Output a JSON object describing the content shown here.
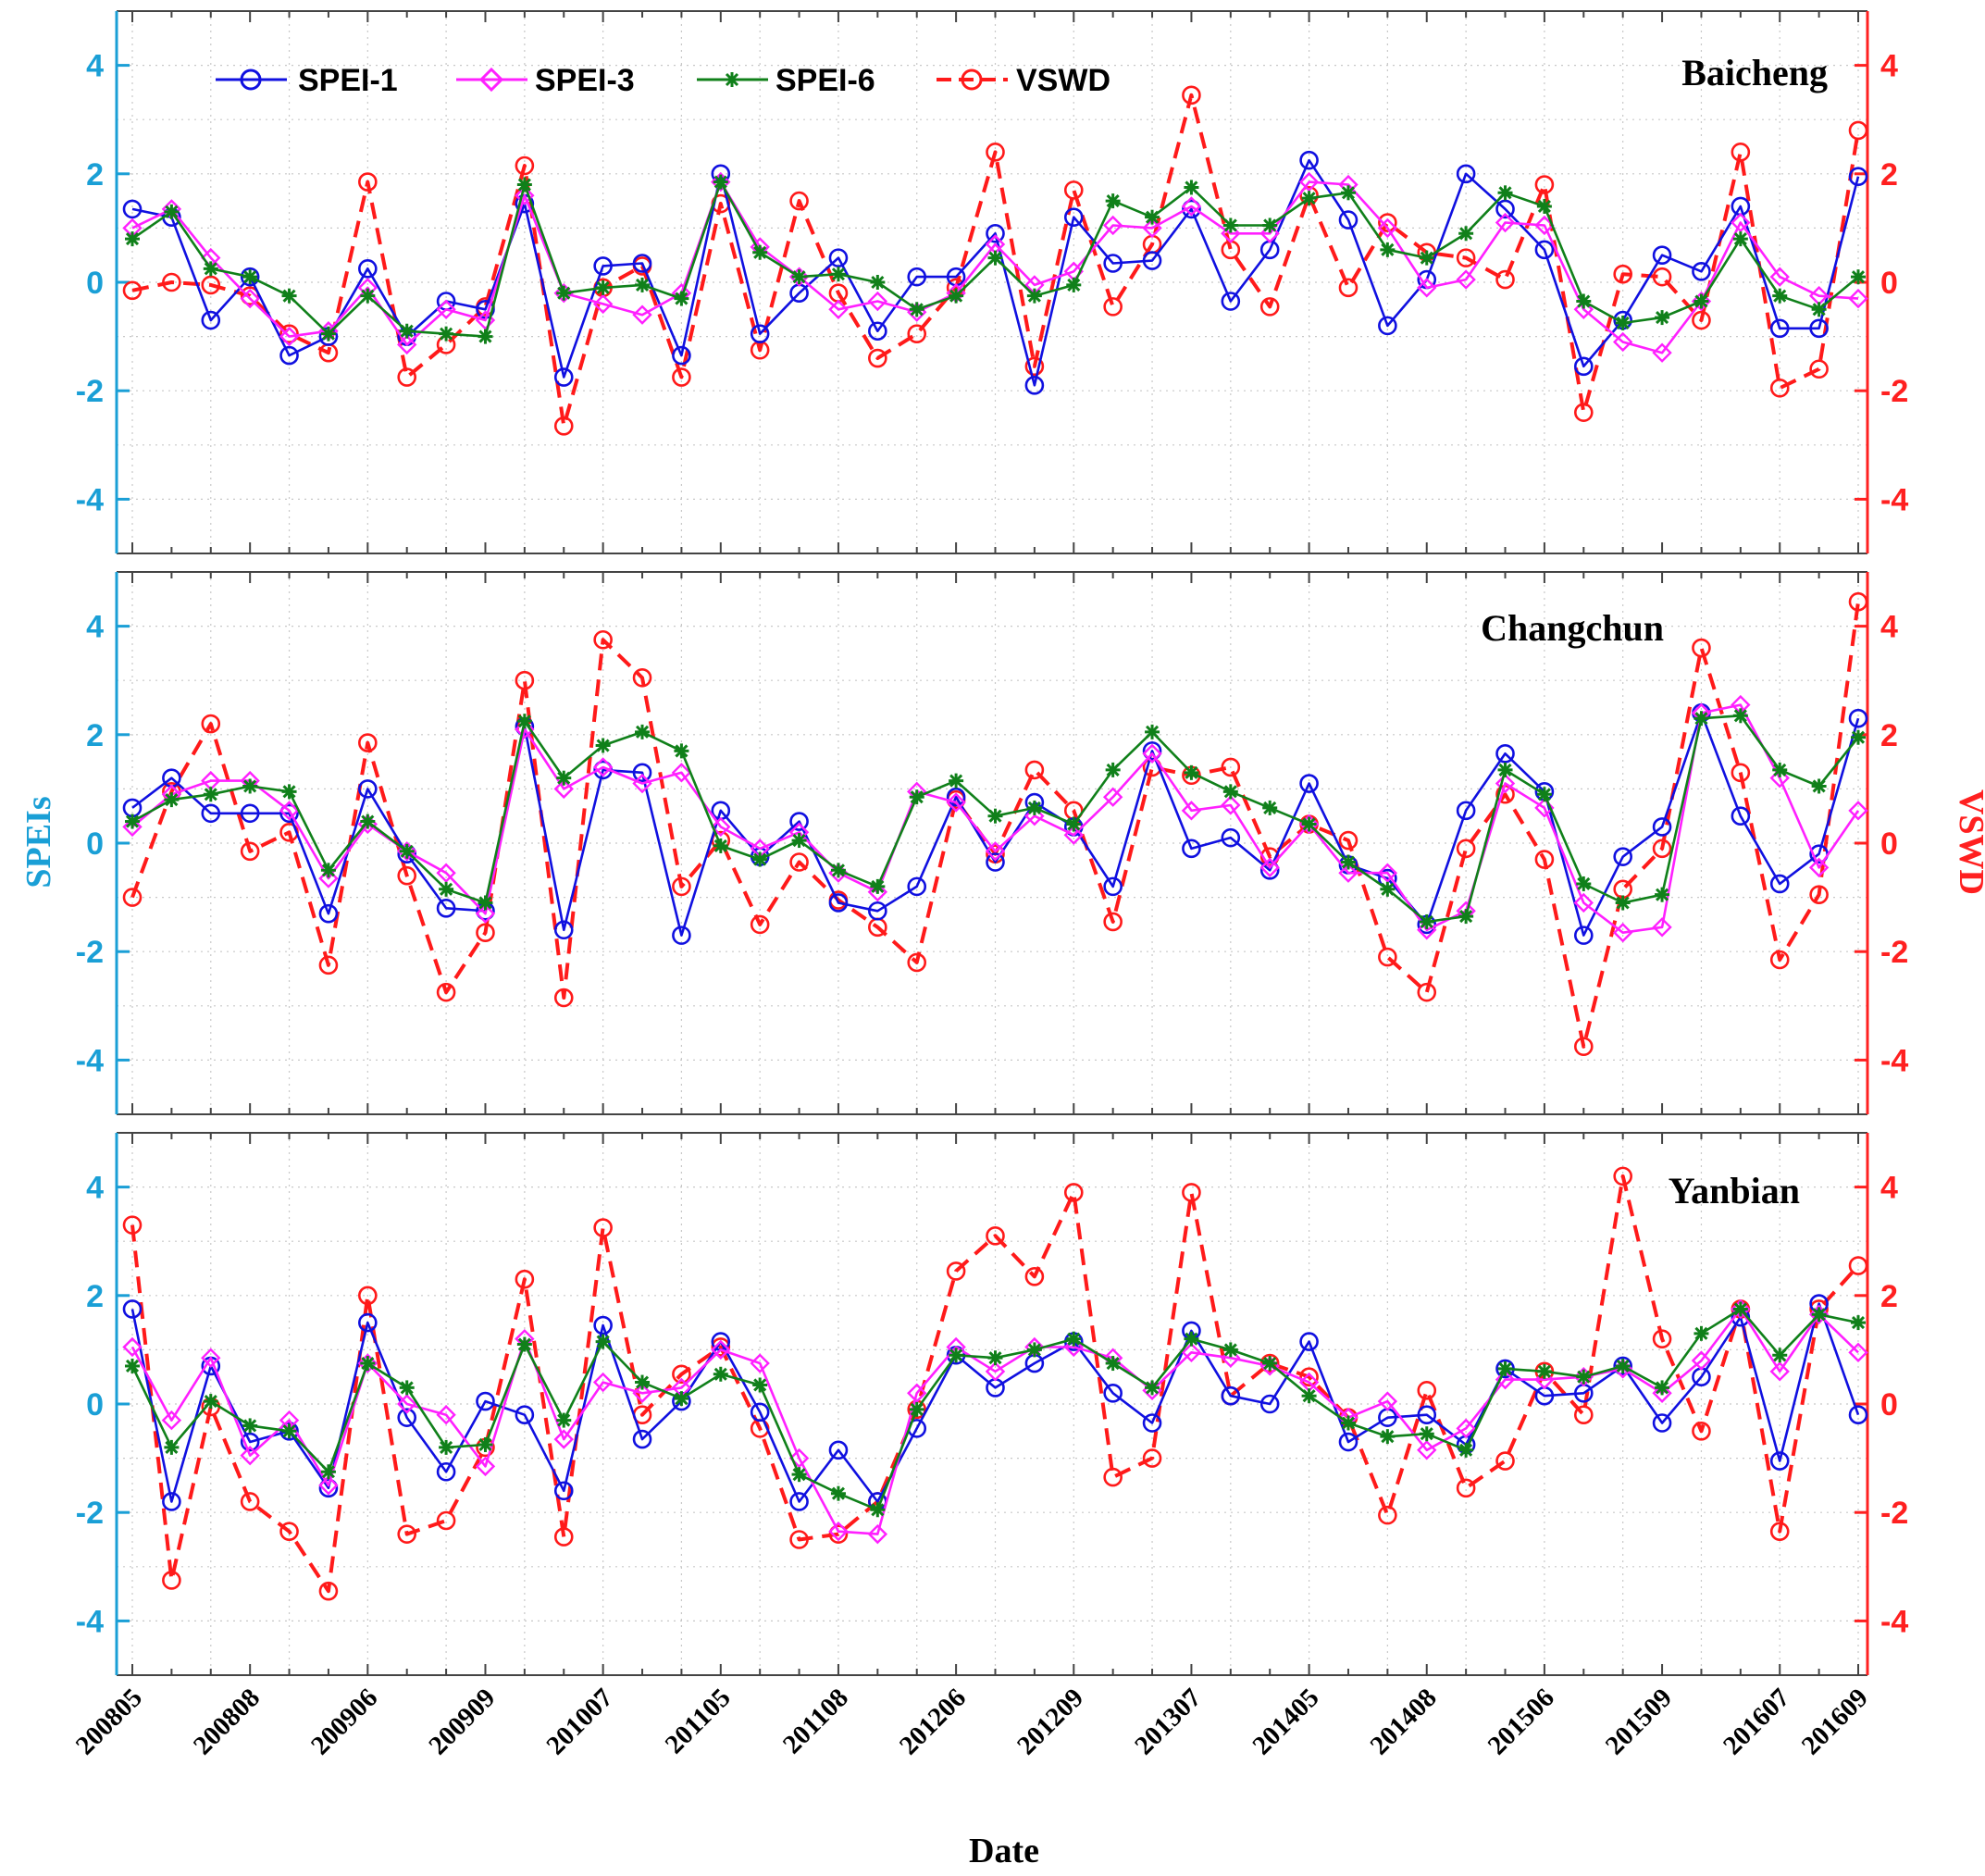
{
  "chart_data": [
    {
      "type": "line",
      "title": "Baicheng",
      "xlabel": "Date",
      "ylabel": "SPEIs",
      "y2label": "VSWD",
      "ylim": [
        -5,
        5
      ],
      "y2lim": [
        -5,
        5
      ],
      "yticks": [
        "4",
        "2",
        "0",
        "-2",
        "-4"
      ],
      "y2ticks": [
        "4",
        "2",
        "0",
        "-2",
        "-4"
      ],
      "xtick_labels": [
        "200805",
        "200808",
        "200906",
        "200909",
        "201007",
        "201105",
        "201108",
        "201206",
        "201209",
        "201307",
        "201405",
        "201408",
        "201506",
        "201509",
        "201607",
        "201609"
      ],
      "legend": [
        "SPEI-1",
        "SPEI-3",
        "SPEI-6",
        "VSWD"
      ],
      "legend_position": "top-left",
      "grid": true,
      "series": [
        {
          "name": "SPEI-1",
          "color": "#1010e0",
          "values": [
            1.35,
            1.2,
            -0.7,
            0.1,
            -1.35,
            -1.0,
            0.25,
            -1.0,
            -0.35,
            -0.5,
            1.45,
            -1.75,
            0.3,
            0.35,
            -1.35,
            2.0,
            -0.95,
            -0.2,
            0.45,
            -0.9,
            0.1,
            0.1,
            0.9,
            -1.9,
            1.2,
            0.35,
            0.4,
            1.35,
            -0.35,
            0.6,
            2.25,
            1.15,
            -0.8,
            0.05,
            2.0,
            1.35,
            0.6,
            -1.55,
            -0.7,
            0.5,
            0.2,
            1.4,
            -0.85,
            -0.85,
            1.95
          ]
        },
        {
          "name": "SPEI-3",
          "color": "#ff20ff",
          "values": [
            1.0,
            1.35,
            0.45,
            -0.3,
            -1.0,
            -0.9,
            -0.1,
            -1.15,
            -0.5,
            -0.7,
            1.6,
            -0.2,
            -0.4,
            -0.6,
            -0.2,
            1.85,
            0.65,
            0.1,
            -0.5,
            -0.35,
            -0.55,
            -0.2,
            0.7,
            -0.05,
            0.2,
            1.05,
            1.0,
            1.4,
            0.9,
            0.9,
            1.85,
            1.8,
            1.0,
            -0.1,
            0.05,
            1.1,
            1.05,
            -0.5,
            -1.1,
            -1.3,
            -0.35,
            1.1,
            0.1,
            -0.25,
            -0.3
          ]
        },
        {
          "name": "SPEI-6",
          "color": "#10801a",
          "values": [
            0.8,
            1.3,
            0.25,
            0.1,
            -0.25,
            -0.95,
            -0.25,
            -0.9,
            -0.95,
            -1.0,
            1.8,
            -0.2,
            -0.1,
            -0.05,
            -0.3,
            1.85,
            0.55,
            0.1,
            0.15,
            0.0,
            -0.5,
            -0.25,
            0.45,
            -0.25,
            -0.05,
            1.5,
            1.2,
            1.75,
            1.05,
            1.05,
            1.55,
            1.65,
            0.6,
            0.45,
            0.9,
            1.65,
            1.4,
            -0.35,
            -0.75,
            -0.65,
            -0.35,
            0.8,
            -0.25,
            -0.5,
            0.1
          ]
        },
        {
          "name": "VSWD",
          "color": "#ff1a1a",
          "values": [
            -0.15,
            0.0,
            -0.05,
            -0.25,
            -0.95,
            -1.3,
            1.85,
            -1.75,
            -1.15,
            -0.45,
            2.15,
            -2.65,
            -0.1,
            0.3,
            -1.75,
            1.45,
            -1.25,
            1.5,
            -0.2,
            -1.4,
            -0.95,
            -0.1,
            2.4,
            -1.55,
            1.7,
            -0.45,
            0.7,
            3.45,
            0.6,
            -0.45,
            1.6,
            -0.1,
            1.1,
            0.55,
            0.45,
            0.05,
            1.8,
            -2.4,
            0.15,
            0.1,
            -0.7,
            2.4,
            -1.95,
            -1.6,
            2.8
          ]
        }
      ]
    },
    {
      "type": "line",
      "title": "Changchun",
      "xlabel": "Date",
      "ylabel": "SPEIs",
      "y2label": "VSWD",
      "ylim": [
        -5,
        5
      ],
      "y2lim": [
        -5,
        5
      ],
      "yticks": [
        "4",
        "2",
        "0",
        "-2",
        "-4"
      ],
      "y2ticks": [
        "4",
        "2",
        "0",
        "-2",
        "-4"
      ],
      "grid": true,
      "series": [
        {
          "name": "SPEI-1",
          "color": "#1010e0",
          "values": [
            0.65,
            1.2,
            0.55,
            0.55,
            0.55,
            -1.3,
            1.0,
            -0.2,
            -1.2,
            -1.25,
            2.15,
            -1.6,
            1.35,
            1.3,
            -1.7,
            0.6,
            -0.25,
            0.4,
            -1.1,
            -1.25,
            -0.8,
            0.85,
            -0.35,
            0.75,
            0.3,
            -0.8,
            1.7,
            -0.1,
            0.1,
            -0.5,
            1.1,
            -0.4,
            -0.65,
            -1.5,
            0.6,
            1.65,
            0.95,
            -1.7,
            -0.25,
            0.3,
            2.4,
            0.5,
            -0.75,
            -0.2,
            2.3
          ]
        },
        {
          "name": "SPEI-3",
          "color": "#ff20ff",
          "values": [
            0.3,
            0.9,
            1.15,
            1.15,
            0.6,
            -0.65,
            0.35,
            -0.15,
            -0.55,
            -1.3,
            2.1,
            1.0,
            1.4,
            1.1,
            1.3,
            0.3,
            -0.1,
            0.2,
            -0.55,
            -0.9,
            0.95,
            0.75,
            -0.15,
            0.5,
            0.15,
            0.85,
            1.65,
            0.6,
            0.7,
            -0.45,
            0.35,
            -0.55,
            -0.55,
            -1.6,
            -1.25,
            1.1,
            0.65,
            -1.1,
            -1.65,
            -1.55,
            2.4,
            2.55,
            1.2,
            -0.45,
            0.6
          ]
        },
        {
          "name": "SPEI-6",
          "color": "#10801a",
          "values": [
            0.4,
            0.8,
            0.9,
            1.05,
            0.95,
            -0.5,
            0.4,
            -0.15,
            -0.85,
            -1.1,
            2.25,
            1.2,
            1.8,
            2.05,
            1.7,
            -0.05,
            -0.3,
            0.05,
            -0.5,
            -0.8,
            0.85,
            1.15,
            0.5,
            0.65,
            0.35,
            1.35,
            2.05,
            1.3,
            0.95,
            0.65,
            0.35,
            -0.35,
            -0.85,
            -1.45,
            -1.35,
            1.35,
            0.9,
            -0.75,
            -1.1,
            -0.95,
            2.3,
            2.35,
            1.35,
            1.05,
            1.95
          ]
        },
        {
          "name": "VSWD",
          "color": "#ff1a1a",
          "values": [
            -1.0,
            0.95,
            2.2,
            -0.15,
            0.2,
            -2.25,
            1.85,
            -0.6,
            -2.75,
            -1.65,
            3.0,
            -2.85,
            3.75,
            3.05,
            -0.8,
            0.05,
            -1.5,
            -0.35,
            -1.05,
            -1.55,
            -2.2,
            0.8,
            -0.2,
            1.35,
            0.6,
            -1.45,
            1.4,
            1.25,
            1.4,
            -0.25,
            0.35,
            0.05,
            -2.1,
            -2.75,
            -0.1,
            0.9,
            -0.3,
            -3.75,
            -0.85,
            -0.1,
            3.6,
            1.3,
            -2.15,
            -0.95,
            4.45
          ]
        }
      ]
    },
    {
      "type": "line",
      "title": "Yanbian",
      "xlabel": "Date",
      "ylabel": "SPEIs",
      "y2label": "VSWD",
      "ylim": [
        -5,
        5
      ],
      "y2lim": [
        -5,
        5
      ],
      "yticks": [
        "4",
        "2",
        "0",
        "-2",
        "-4"
      ],
      "y2ticks": [
        "4",
        "2",
        "0",
        "-2",
        "-4"
      ],
      "grid": true,
      "series": [
        {
          "name": "SPEI-1",
          "color": "#1010e0",
          "values": [
            1.75,
            -1.8,
            0.7,
            -0.7,
            -0.5,
            -1.55,
            1.5,
            -0.25,
            -1.25,
            0.05,
            -0.2,
            -1.6,
            1.45,
            -0.65,
            0.05,
            1.15,
            -0.15,
            -1.8,
            -0.85,
            -1.8,
            -0.45,
            0.9,
            0.3,
            0.75,
            1.15,
            0.2,
            -0.35,
            1.35,
            0.15,
            0.0,
            1.15,
            -0.7,
            -0.25,
            -0.2,
            -0.75,
            0.65,
            0.15,
            0.2,
            0.7,
            -0.35,
            0.5,
            1.6,
            -1.05,
            1.85,
            -0.2
          ]
        },
        {
          "name": "SPEI-3",
          "color": "#ff20ff",
          "values": [
            1.05,
            -0.3,
            0.85,
            -0.95,
            -0.3,
            -1.5,
            0.75,
            0.0,
            -0.2,
            -1.15,
            1.2,
            -0.65,
            0.4,
            0.2,
            0.3,
            1.0,
            0.75,
            -1.0,
            -2.35,
            -2.4,
            0.2,
            1.05,
            0.6,
            1.05,
            1.05,
            0.85,
            0.25,
            0.95,
            0.85,
            0.7,
            0.4,
            -0.25,
            0.05,
            -0.85,
            -0.45,
            0.45,
            0.45,
            0.5,
            0.65,
            0.2,
            0.8,
            1.75,
            0.6,
            1.65,
            0.95
          ]
        },
        {
          "name": "SPEI-6",
          "color": "#10801a",
          "values": [
            0.7,
            -0.8,
            0.05,
            -0.4,
            -0.5,
            -1.25,
            0.75,
            0.3,
            -0.8,
            -0.75,
            1.1,
            -0.3,
            1.15,
            0.4,
            0.1,
            0.55,
            0.35,
            -1.3,
            -1.65,
            -1.95,
            -0.1,
            0.9,
            0.85,
            1.0,
            1.2,
            0.75,
            0.3,
            1.2,
            1.0,
            0.75,
            0.15,
            -0.35,
            -0.6,
            -0.55,
            -0.85,
            0.65,
            0.6,
            0.5,
            0.7,
            0.3,
            1.3,
            1.75,
            0.9,
            1.65,
            1.5
          ]
        },
        {
          "name": "VSWD",
          "color": "#ff1a1a",
          "values": [
            3.3,
            -3.25,
            -0.05,
            -1.8,
            -2.35,
            -3.45,
            2.0,
            -2.4,
            -2.15,
            -0.8,
            2.3,
            -2.45,
            3.25,
            -0.2,
            0.55,
            1.05,
            -0.45,
            -2.5,
            -2.4,
            -1.8,
            -0.1,
            2.45,
            3.1,
            2.35,
            3.9,
            -1.35,
            -1.0,
            3.9,
            0.15,
            0.75,
            0.5,
            -0.25,
            -2.05,
            0.25,
            -1.55,
            -1.05,
            0.6,
            -0.2,
            4.2,
            1.2,
            -0.5,
            1.75,
            -2.35,
            1.75,
            2.55
          ]
        }
      ]
    }
  ]
}
